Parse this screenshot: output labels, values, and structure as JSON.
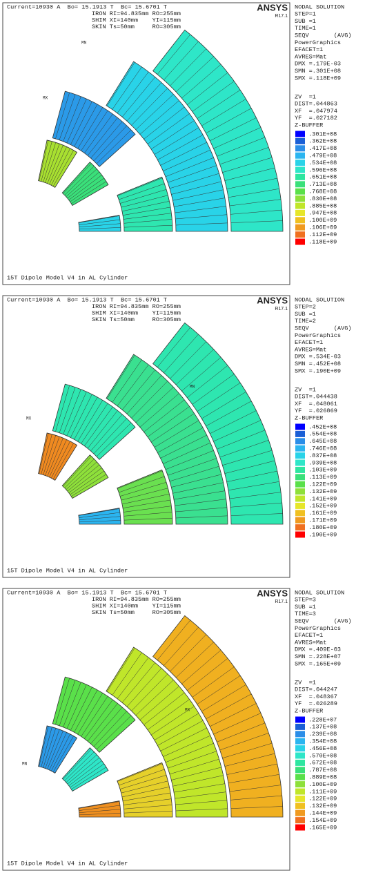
{
  "legend_colors": [
    "#0000ff",
    "#1a5fd6",
    "#2b8ee8",
    "#2bb5f0",
    "#29d3e8",
    "#2ee6c8",
    "#2ee6a0",
    "#3ae07a",
    "#5ae04a",
    "#8ee03a",
    "#c0e62a",
    "#e6e62a",
    "#f0c020",
    "#f09a20",
    "#f07020",
    "#ff0000"
  ],
  "panels": [
    {
      "header": [
        "Current=10930 A  Bo= 15.1913 T  Bc= 15.6701 T",
        "IRON RI=94.835mm RO=255mm",
        "SHIM XI=140mm    YI=115mm",
        "SKIN Ts=50mm     RO=305mm"
      ],
      "logo": "ANSYS",
      "version": "R17.1",
      "info": [
        "NODAL SOLUTION",
        "STEP=1",
        "SUB =1",
        "TIME=1",
        "SEQV       (AVG)",
        "PowerGraphics",
        "EFACET=1",
        "AVRES=Mat",
        "DMX =.179E-03",
        "SMN =.301E+08",
        "SMX =.118E+09"
      ],
      "view": [
        "ZV  =1",
        "DIST=.044863",
        "XF  =.047974",
        "YF  =.027182",
        "Z-BUFFER"
      ],
      "legend": [
        ".301E+08",
        ".362E+08",
        ".417E+08",
        ".479E+08",
        ".534E+08",
        ".596E+08",
        ".651E+08",
        ".713E+08",
        ".768E+08",
        ".830E+08",
        ".885E+08",
        ".947E+08",
        ".100E+09",
        ".106E+09",
        ".112E+09",
        ".118E+09"
      ],
      "markers": [
        "MN",
        "MX"
      ],
      "footer": "15T Dipole Model V4 in AL Cylinder"
    },
    {
      "header": [
        "Current=10930 A  Bo= 15.1913 T  Bc= 15.6701 T",
        "IRON RI=94.835mm RO=255mm",
        "SHIM XI=140mm    YI=115mm",
        "SKIN Ts=50mm     RO=305mm"
      ],
      "logo": "ANSYS",
      "version": "R17.1",
      "info": [
        "NODAL SOLUTION",
        "STEP=2",
        "SUB =1",
        "TIME=2",
        "SEQV       (AVG)",
        "PowerGraphics",
        "EFACET=1",
        "AVRES=Mat",
        "DMX =.534E-03",
        "SMN =.452E+08",
        "SMX =.190E+09"
      ],
      "view": [
        "ZV  =1",
        "DIST=.044438",
        "XF  =.048061",
        "YF  =.026869",
        "Z-BUFFER"
      ],
      "legend": [
        ".452E+08",
        ".554E+08",
        ".645E+08",
        ".746E+08",
        ".837E+08",
        ".939E+08",
        ".103E+09",
        ".113E+09",
        ".122E+09",
        ".132E+09",
        ".141E+09",
        ".152E+09",
        ".161E+09",
        ".171E+09",
        ".180E+09",
        ".190E+09"
      ],
      "markers": [
        "MN",
        "MX"
      ],
      "footer": "15T Dipole Model V4 in AL Cylinder"
    },
    {
      "header": [
        "Current=10930 A  Bo= 15.1913 T  Bc= 15.6701 T",
        "IRON RI=94.835mm RO=255mm",
        "SHIM XI=140mm    YI=115mm",
        "SKIN Ts=50mm     RO=305mm"
      ],
      "logo": "ANSYS",
      "version": "R17.1",
      "info": [
        "NODAL SOLUTION",
        "STEP=3",
        "SUB =1",
        "TIME=3",
        "SEQV       (AVG)",
        "PowerGraphics",
        "EFACET=1",
        "AVRES=Mat",
        "DMX =.409E-03",
        "SMN =.228E+07",
        "SMX =.165E+09"
      ],
      "view": [
        "ZV  =1",
        "DIST=.044247",
        "XF  =.048367",
        "YF  =.026289",
        "Z-BUFFER"
      ],
      "legend": [
        ".228E+07",
        ".137E+08",
        ".239E+08",
        ".354E+08",
        ".456E+08",
        ".570E+08",
        ".672E+08",
        ".787E+08",
        ".889E+08",
        ".100E+09",
        ".111E+09",
        ".122E+09",
        ".132E+09",
        ".144E+09",
        ".154E+09",
        ".165E+09"
      ],
      "markers": [
        "MN",
        "MX"
      ],
      "footer": "15T Dipole Model V4 in AL Cylinder"
    }
  ]
}
